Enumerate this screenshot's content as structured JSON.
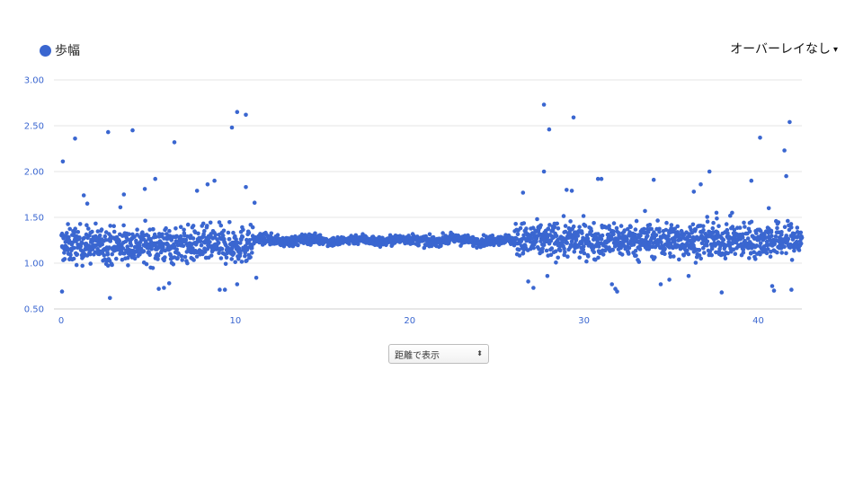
{
  "legend": {
    "label": "歩幅",
    "color": "#3a66d0"
  },
  "overlay": {
    "label": "オーバーレイなし",
    "caret": "▾"
  },
  "distance_select": {
    "value": "距離で表示",
    "arrows": "⬍"
  },
  "chart_data": {
    "type": "scatter",
    "series": [
      {
        "name": "歩幅",
        "color": "#3a66d0"
      }
    ],
    "xlim": [
      0,
      42.5
    ],
    "ylim": [
      0.5,
      3.0
    ],
    "xticks": [
      "0",
      "10",
      "20",
      "30",
      "40"
    ],
    "xtick_values": [
      0,
      10,
      20,
      30,
      40
    ],
    "yticks": [
      "0.50",
      "1.00",
      "1.50",
      "2.00",
      "2.50",
      "3.00"
    ],
    "ytick_values": [
      0.5,
      1.0,
      1.5,
      2.0,
      2.5,
      3.0
    ],
    "grid": "horizontal",
    "bands": [
      {
        "x": [
          0,
          11
        ],
        "center": 1.2,
        "spread": 0.18
      },
      {
        "x": [
          11,
          26
        ],
        "center": 1.25,
        "spread": 0.05
      },
      {
        "x": [
          26,
          42.5
        ],
        "center": 1.25,
        "spread": 0.17
      }
    ],
    "outliers": [
      [
        0.1,
        2.11
      ],
      [
        0.8,
        2.36
      ],
      [
        2.7,
        2.43
      ],
      [
        4.1,
        2.45
      ],
      [
        6.5,
        2.32
      ],
      [
        9.8,
        2.48
      ],
      [
        10.1,
        2.65
      ],
      [
        10.6,
        2.62
      ],
      [
        10.6,
        1.83
      ],
      [
        10.1,
        0.77
      ],
      [
        8.8,
        1.9
      ],
      [
        8.4,
        1.86
      ],
      [
        7.8,
        1.79
      ],
      [
        5.4,
        1.92
      ],
      [
        4.8,
        1.81
      ],
      [
        3.6,
        1.75
      ],
      [
        3.4,
        1.61
      ],
      [
        1.3,
        1.74
      ],
      [
        1.5,
        1.65
      ],
      [
        2.8,
        0.62
      ],
      [
        5.6,
        0.72
      ],
      [
        5.9,
        0.73
      ],
      [
        6.2,
        0.78
      ],
      [
        9.1,
        0.71
      ],
      [
        9.4,
        0.71
      ],
      [
        11.1,
        1.66
      ],
      [
        11.2,
        0.84
      ],
      [
        0.05,
        0.69
      ],
      [
        26.5,
        1.77
      ],
      [
        27.7,
        2.73
      ],
      [
        27.7,
        2.0
      ],
      [
        28.0,
        2.46
      ],
      [
        29.4,
        2.59
      ],
      [
        29.0,
        1.8
      ],
      [
        29.3,
        1.79
      ],
      [
        30.8,
        1.92
      ],
      [
        31.0,
        1.92
      ],
      [
        26.8,
        0.8
      ],
      [
        27.1,
        0.73
      ],
      [
        27.9,
        0.86
      ],
      [
        31.6,
        0.77
      ],
      [
        31.8,
        0.72
      ],
      [
        31.9,
        0.69
      ],
      [
        33.5,
        1.57
      ],
      [
        34.0,
        1.91
      ],
      [
        34.4,
        0.77
      ],
      [
        34.9,
        0.82
      ],
      [
        36.3,
        1.78
      ],
      [
        36.7,
        1.86
      ],
      [
        37.2,
        2.0
      ],
      [
        37.6,
        1.55
      ],
      [
        37.9,
        0.68
      ],
      [
        38.5,
        1.55
      ],
      [
        39.6,
        1.9
      ],
      [
        40.1,
        2.37
      ],
      [
        40.6,
        1.6
      ],
      [
        40.8,
        0.75
      ],
      [
        40.9,
        0.7
      ],
      [
        41.5,
        2.23
      ],
      [
        41.6,
        1.95
      ],
      [
        41.8,
        2.54
      ],
      [
        41.9,
        0.71
      ],
      [
        36.0,
        0.86
      ]
    ]
  }
}
